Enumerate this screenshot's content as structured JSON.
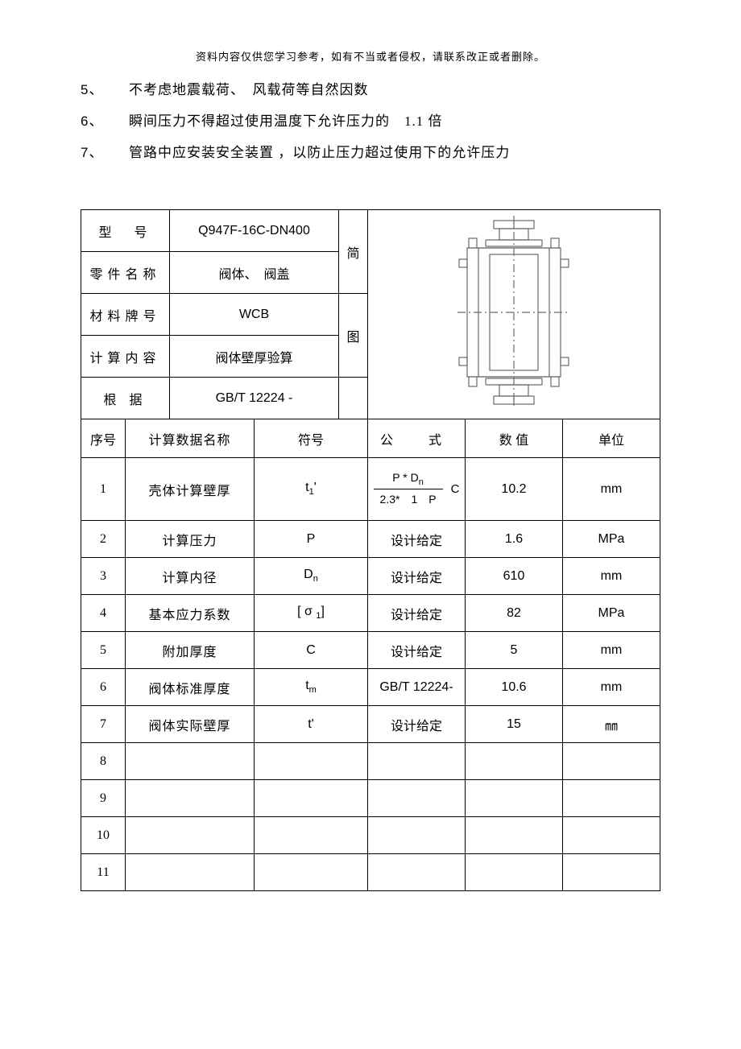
{
  "header_note": "资料内容仅供您学习参考，如有不当或者侵权，请联系改正或者删除。",
  "list": [
    {
      "no": "5、",
      "text": "不考虑地震载荷、　风载荷等自然因数"
    },
    {
      "no": "6、",
      "text": "瞬间压力不得超过使用温度下允许压力的　1.1 倍"
    },
    {
      "no": "7、",
      "text": "管路中应安装安全装置 ，以防止压力超过使用下的允许压力"
    }
  ],
  "info": {
    "model_label": "型　号",
    "model_value": "Q947F-16C-DN400",
    "part_label": "零件名称",
    "part_value": "阀体、　阀盖",
    "material_label": "材料牌号",
    "material_value": "WCB",
    "content_label": "计算内容",
    "content_value": "阀体壁厚验算",
    "basis_label": "根  据",
    "basis_value": "GB/T 12224 -",
    "diagram_label1": "简",
    "diagram_label2": "图"
  },
  "calc_headers": {
    "no": "序号",
    "name": "计算数据名称",
    "symbol": "符号",
    "formula": "公　式",
    "value": "数  值",
    "unit": "单位"
  },
  "rows": [
    {
      "no": "1",
      "name": "壳体计算壁厚",
      "symbol_html": "t<span class='sub'>1</span>'",
      "formula_html": "<span class='formula-box'><span class='frac-num'>P * D<span class=\"sub\">n</span></span><span class='frac-den'>2.3*　1　P</span></span><span class='frac-plus'>C</span>",
      "value": "10.2",
      "unit": "mm",
      "tall": true
    },
    {
      "no": "2",
      "name": "计算压力",
      "symbol_html": "P",
      "formula_html": "<span class='cn-mix'>设计给定</span>",
      "value": "1.6",
      "unit": "MPa"
    },
    {
      "no": "3",
      "name": "计算内径",
      "symbol_html": "D<span class='sub'>n</span>",
      "formula_html": "<span class='cn-mix'>设计给定</span>",
      "value": "610",
      "unit": "mm"
    },
    {
      "no": "4",
      "name": "基本应力系数",
      "symbol_html": "[ σ <span class='sub'>1</span>]",
      "formula_html": "<span class='cn-mix'>设计给定</span>",
      "value": "82",
      "unit": "MPa"
    },
    {
      "no": "5",
      "name": "附加厚度",
      "symbol_html": "C",
      "formula_html": "<span class='cn-mix'>设计给定</span>",
      "value": "5",
      "unit": "mm"
    },
    {
      "no": "6",
      "name": "阀体标准厚度",
      "symbol_html": "t<span class='sub'>m</span>",
      "formula_html": "GB/T 12224-",
      "value": "10.6",
      "unit": "mm"
    },
    {
      "no": "7",
      "name": "阀体实际壁厚",
      "symbol_html": "t'",
      "formula_html": "<span class='cn-mix'>设计给定</span>",
      "value": "15",
      "unit": "㎜"
    },
    {
      "no": "8",
      "name": "",
      "symbol_html": "",
      "formula_html": "",
      "value": "",
      "unit": ""
    },
    {
      "no": "9",
      "name": "",
      "symbol_html": "",
      "formula_html": "",
      "value": "",
      "unit": ""
    },
    {
      "no": "10",
      "name": "",
      "symbol_html": "",
      "formula_html": "",
      "value": "",
      "unit": ""
    },
    {
      "no": "11",
      "name": "",
      "symbol_html": "",
      "formula_html": "",
      "value": "",
      "unit": ""
    }
  ],
  "diagram": {
    "stroke": "#6a6a6a",
    "stroke_width": 1.2
  }
}
